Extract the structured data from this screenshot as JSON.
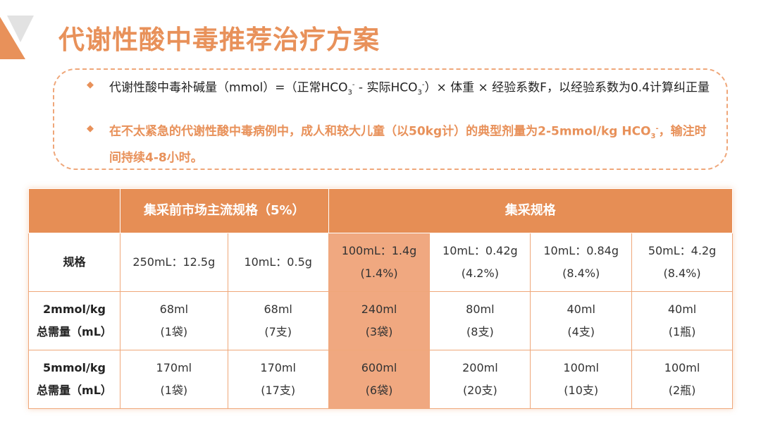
{
  "title": "代谢性酸中毒推荐治疗方案",
  "colors": {
    "accent": "#E8915A",
    "header_bg": "#E68E55",
    "highlight": "#F0A880"
  },
  "bullets": [
    {
      "icon": "diamond-icon",
      "pre": "代谢性酸中毒补碱量（mmol）=（正常HCO",
      "sub1": "3",
      "sup1": "-",
      "mid": " - 实际HCO",
      "sub2": "3",
      "sup2": "-",
      "post": "）× 体重 × 经验系数F，以经验系数为0.4计算纠正量"
    },
    {
      "icon": "diamond-icon",
      "pre": "在不太紧急的代谢性酸中毒病例中，成人和较大儿童（以50kg计）的典型剂量为2-5mmol/kg HCO",
      "sub1": "3",
      "sup1": "-",
      "post": "，输注时间持续4-8小时。"
    }
  ],
  "table": {
    "header": [
      "",
      "集采前市场主流规格（5%）",
      "集采规格"
    ],
    "rows": [
      {
        "label": "规格",
        "cells": [
          [
            "250mL：12.5g",
            ""
          ],
          [
            "10mL：0.5g",
            ""
          ],
          [
            "100mL：1.4g",
            "(1.4%)"
          ],
          [
            "10mL：0.42g",
            "(4.2%)"
          ],
          [
            "10mL：0.84g",
            "(8.4%)"
          ],
          [
            "50mL：4.2g",
            "(8.4%)"
          ]
        ]
      },
      {
        "label": "2mmol/kg 总需量（mL）",
        "l1": "2mmol/kg",
        "l2": "总需量（mL）",
        "cells": [
          [
            "68ml",
            "(1袋)"
          ],
          [
            "68ml",
            "(7支)"
          ],
          [
            "240ml",
            "(3袋)"
          ],
          [
            "80ml",
            "(8支)"
          ],
          [
            "40ml",
            "(4支)"
          ],
          [
            "40ml",
            "(1瓶)"
          ]
        ]
      },
      {
        "label": "5mmol/kg 总需量（mL）",
        "l1": "5mmol/kg",
        "l2": "总需量（mL）",
        "cells": [
          [
            "170ml",
            "(1袋)"
          ],
          [
            "170ml",
            "(17支)"
          ],
          [
            "600ml",
            "(6袋)"
          ],
          [
            "200ml",
            "(20支)"
          ],
          [
            "100ml",
            "(10支)"
          ],
          [
            "100ml",
            "(2瓶)"
          ]
        ]
      }
    ],
    "highlight_column": 2
  }
}
